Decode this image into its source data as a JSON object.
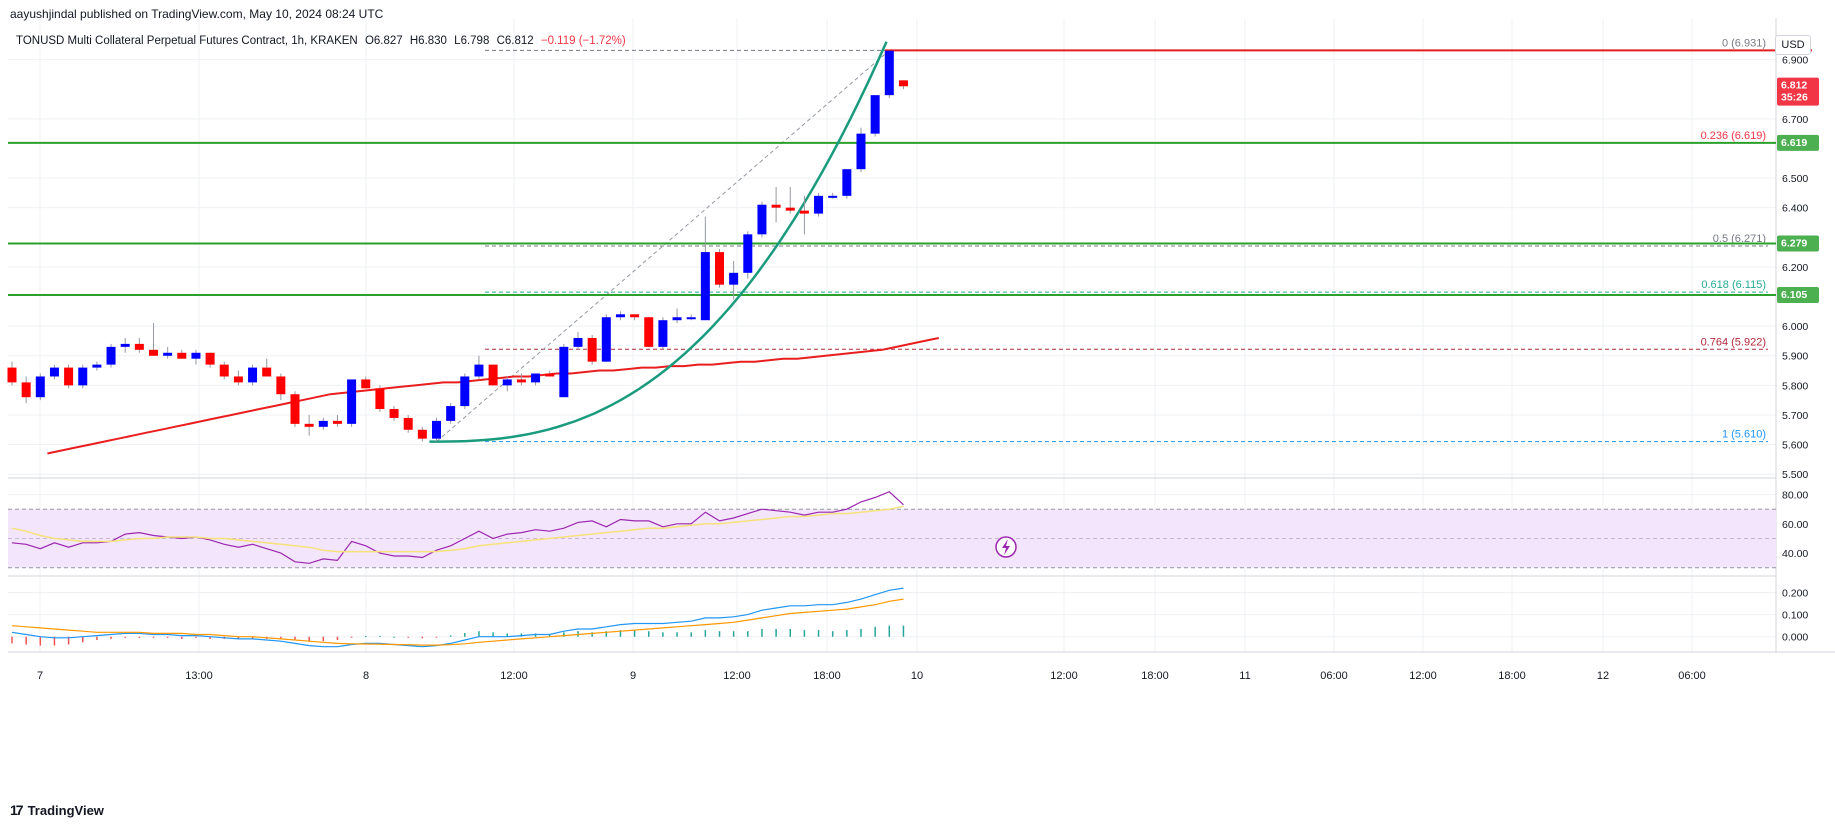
{
  "header": {
    "published": "aayushjindal published on TradingView.com, May 10, 2024 08:24 UTC",
    "symbol": "TONUSD Multi Collateral Perpetual Futures Contract, 1h, KRAKEN",
    "open": "O6.827",
    "high": "H6.830",
    "low": "L6.798",
    "close": "C6.812",
    "change": "−0.119 (−1.72%)",
    "currency": "USD"
  },
  "footer": {
    "logo_text": "TradingView",
    "logo_mark": "17"
  },
  "price_tags": {
    "last": {
      "price": "6.812",
      "countdown": "35:26",
      "color": "#f23645"
    },
    "level1": {
      "price": "6.619",
      "color": "#4caf50"
    },
    "level2": {
      "price": "6.279",
      "color": "#4caf50"
    },
    "level3": {
      "price": "6.105",
      "color": "#4caf50"
    }
  },
  "fib_labels": [
    {
      "text": "0 (6.931)",
      "color": "#787b86"
    },
    {
      "text": "0.236 (6.619)",
      "color": "#f23645"
    },
    {
      "text": "0.5 (6.271)",
      "color": "#787b86"
    },
    {
      "text": "0.618 (6.115)",
      "color": "#22ab94"
    },
    {
      "text": "0.764 (5.922)",
      "color": "#b2283b"
    },
    {
      "text": "1 (5.610)",
      "color": "#2196f3"
    }
  ],
  "chart_data": {
    "type": "candlestick",
    "price_axis": {
      "ticks": [
        "6.900",
        "6.700",
        "6.500",
        "6.400",
        "6.200",
        "6.000",
        "5.900",
        "5.800",
        "5.700",
        "5.600",
        "5.500"
      ],
      "range": [
        5.45,
        7.0
      ]
    },
    "time_axis": {
      "labels": [
        "7",
        "13:00",
        "8",
        "12:00",
        "9",
        "12:00",
        "18:00",
        "10",
        "12:00",
        "18:00",
        "11",
        "06:00",
        "12:00",
        "18:00",
        "12",
        "06:00"
      ]
    },
    "candles": [
      [
        5.86,
        5.88,
        5.8,
        5.81
      ],
      [
        5.81,
        5.83,
        5.74,
        5.76
      ],
      [
        5.76,
        5.84,
        5.75,
        5.83
      ],
      [
        5.83,
        5.87,
        5.82,
        5.86
      ],
      [
        5.86,
        5.87,
        5.79,
        5.8
      ],
      [
        5.8,
        5.87,
        5.79,
        5.86
      ],
      [
        5.86,
        5.88,
        5.85,
        5.87
      ],
      [
        5.87,
        5.94,
        5.86,
        5.93
      ],
      [
        5.93,
        5.96,
        5.91,
        5.94
      ],
      [
        5.94,
        5.96,
        5.91,
        5.92
      ],
      [
        5.92,
        6.01,
        5.9,
        5.9
      ],
      [
        5.9,
        5.93,
        5.89,
        5.91
      ],
      [
        5.91,
        5.92,
        5.89,
        5.89
      ],
      [
        5.89,
        5.92,
        5.87,
        5.91
      ],
      [
        5.91,
        5.91,
        5.86,
        5.87
      ],
      [
        5.87,
        5.88,
        5.82,
        5.83
      ],
      [
        5.83,
        5.85,
        5.8,
        5.81
      ],
      [
        5.81,
        5.87,
        5.8,
        5.86
      ],
      [
        5.86,
        5.89,
        5.83,
        5.83
      ],
      [
        5.83,
        5.84,
        5.75,
        5.77
      ],
      [
        5.77,
        5.78,
        5.66,
        5.67
      ],
      [
        5.67,
        5.7,
        5.63,
        5.66
      ],
      [
        5.66,
        5.69,
        5.65,
        5.68
      ],
      [
        5.68,
        5.7,
        5.66,
        5.67
      ],
      [
        5.67,
        5.82,
        5.66,
        5.82
      ],
      [
        5.82,
        5.83,
        5.79,
        5.79
      ],
      [
        5.79,
        5.8,
        5.71,
        5.72
      ],
      [
        5.72,
        5.73,
        5.68,
        5.69
      ],
      [
        5.69,
        5.7,
        5.64,
        5.65
      ],
      [
        5.65,
        5.66,
        5.61,
        5.62
      ],
      [
        5.62,
        5.69,
        5.61,
        5.68
      ],
      [
        5.68,
        5.74,
        5.67,
        5.73
      ],
      [
        5.73,
        5.84,
        5.72,
        5.83
      ],
      [
        5.83,
        5.9,
        5.82,
        5.87
      ],
      [
        5.87,
        5.87,
        5.8,
        5.8
      ],
      [
        5.8,
        5.83,
        5.78,
        5.82
      ],
      [
        5.82,
        5.84,
        5.8,
        5.81
      ],
      [
        5.81,
        5.84,
        5.8,
        5.84
      ],
      [
        5.84,
        5.85,
        5.83,
        5.83
      ],
      [
        5.76,
        5.94,
        5.76,
        5.93
      ],
      [
        5.93,
        5.98,
        5.92,
        5.96
      ],
      [
        5.96,
        5.97,
        5.87,
        5.88
      ],
      [
        5.88,
        6.04,
        5.88,
        6.03
      ],
      [
        6.03,
        6.05,
        6.02,
        6.04
      ],
      [
        6.04,
        6.04,
        6.02,
        6.03
      ],
      [
        6.03,
        6.03,
        5.93,
        5.93
      ],
      [
        5.93,
        6.03,
        5.92,
        6.02
      ],
      [
        6.02,
        6.06,
        6.01,
        6.03
      ],
      [
        6.03,
        6.04,
        6.02,
        6.03
      ],
      [
        6.02,
        6.37,
        6.02,
        6.25
      ],
      [
        6.25,
        6.26,
        6.13,
        6.14
      ],
      [
        6.14,
        6.22,
        6.09,
        6.18
      ],
      [
        6.18,
        6.32,
        6.16,
        6.31
      ],
      [
        6.31,
        6.42,
        6.3,
        6.41
      ],
      [
        6.41,
        6.47,
        6.35,
        6.4
      ],
      [
        6.4,
        6.47,
        6.38,
        6.39
      ],
      [
        6.39,
        6.44,
        6.31,
        6.38
      ],
      [
        6.38,
        6.45,
        6.37,
        6.44
      ],
      [
        6.44,
        6.45,
        6.43,
        6.44
      ],
      [
        6.44,
        6.53,
        6.43,
        6.53
      ],
      [
        6.53,
        6.67,
        6.52,
        6.65
      ],
      [
        6.65,
        6.78,
        6.64,
        6.78
      ],
      [
        6.78,
        6.93,
        6.77,
        6.93
      ],
      [
        6.83,
        6.83,
        6.8,
        6.81
      ]
    ],
    "sma_red": [
      5.57,
      5.58,
      5.59,
      5.6,
      5.61,
      5.62,
      5.63,
      5.64,
      5.65,
      5.66,
      5.67,
      5.68,
      5.69,
      5.7,
      5.71,
      5.72,
      5.73,
      5.74,
      5.75,
      5.76,
      5.77,
      5.775,
      5.78,
      5.785,
      5.79,
      5.795,
      5.8,
      5.805,
      5.81,
      5.81,
      5.815,
      5.82,
      5.825,
      5.83,
      5.83,
      5.835,
      5.84,
      5.84,
      5.845,
      5.85,
      5.85,
      5.855,
      5.86,
      5.86,
      5.865,
      5.865,
      5.87,
      5.87,
      5.875,
      5.88,
      5.88,
      5.885,
      5.89,
      5.89,
      5.895,
      5.9,
      5.905,
      5.91,
      5.915,
      5.92,
      5.93,
      5.94,
      5.95,
      5.96
    ],
    "parabolic_curve": {
      "start_price": 5.61,
      "end_price": 6.96
    },
    "horizontal_levels": [
      6.931,
      6.619,
      6.279,
      6.105
    ],
    "fibonacci": {
      "high": 6.931,
      "low": 5.61,
      "levels": [
        0,
        0.236,
        0.5,
        0.618,
        0.764,
        1
      ]
    },
    "rsi": {
      "ticks": [
        "80.00",
        "60.00",
        "40.00"
      ],
      "range": [
        25,
        90
      ],
      "band": [
        70,
        30
      ],
      "values": [
        47,
        46,
        43,
        47,
        44,
        47,
        47,
        48,
        53,
        54,
        52,
        51,
        50,
        51,
        49,
        46,
        44,
        46,
        43,
        40,
        34,
        33,
        36,
        35,
        48,
        45,
        40,
        38,
        38,
        37,
        42,
        45,
        50,
        55,
        50,
        53,
        54,
        56,
        55,
        57,
        61,
        62,
        58,
        63,
        62,
        62,
        58,
        60,
        60,
        68,
        62,
        64,
        67,
        70,
        69,
        68,
        66,
        68,
        68,
        70,
        75,
        78,
        82,
        73
      ],
      "ma_values": [
        57,
        55,
        52,
        50,
        49,
        48,
        48,
        48,
        49,
        50,
        50,
        51,
        51,
        51,
        50,
        50,
        49,
        48,
        47,
        46,
        45,
        44,
        42,
        41,
        41,
        41,
        41,
        41,
        41,
        41,
        41,
        42,
        43,
        45,
        46,
        47,
        48,
        49,
        50,
        51,
        52,
        53,
        54,
        55,
        56,
        57,
        57,
        58,
        59,
        60,
        60,
        61,
        62,
        63,
        64,
        65,
        65,
        66,
        67,
        67,
        68,
        69,
        70,
        72
      ]
    },
    "macd": {
      "ticks": [
        "0.200",
        "0.100",
        "0.000"
      ],
      "range": [
        -0.06,
        0.27
      ],
      "macd": [
        0.02,
        0.01,
        0.0,
        -0.005,
        -0.005,
        0.0,
        0.005,
        0.01,
        0.015,
        0.015,
        0.01,
        0.01,
        0.005,
        0.005,
        0.0,
        -0.005,
        -0.01,
        -0.01,
        -0.015,
        -0.02,
        -0.03,
        -0.04,
        -0.045,
        -0.045,
        -0.035,
        -0.03,
        -0.03,
        -0.035,
        -0.04,
        -0.045,
        -0.04,
        -0.03,
        -0.015,
        0.0,
        0.0,
        0.0,
        0.005,
        0.01,
        0.01,
        0.025,
        0.035,
        0.035,
        0.045,
        0.055,
        0.06,
        0.06,
        0.06,
        0.065,
        0.07,
        0.085,
        0.085,
        0.09,
        0.1,
        0.12,
        0.13,
        0.14,
        0.14,
        0.145,
        0.145,
        0.155,
        0.17,
        0.19,
        0.21,
        0.22
      ],
      "signal": [
        0.05,
        0.045,
        0.04,
        0.035,
        0.03,
        0.025,
        0.02,
        0.02,
        0.02,
        0.02,
        0.015,
        0.015,
        0.015,
        0.01,
        0.01,
        0.005,
        0.0,
        0.0,
        -0.005,
        -0.01,
        -0.015,
        -0.02,
        -0.025,
        -0.03,
        -0.032,
        -0.033,
        -0.034,
        -0.035,
        -0.036,
        -0.038,
        -0.038,
        -0.036,
        -0.032,
        -0.025,
        -0.02,
        -0.015,
        -0.01,
        -0.005,
        0.0,
        0.005,
        0.01,
        0.015,
        0.02,
        0.025,
        0.03,
        0.035,
        0.04,
        0.045,
        0.05,
        0.055,
        0.06,
        0.065,
        0.075,
        0.085,
        0.095,
        0.105,
        0.11,
        0.115,
        0.12,
        0.125,
        0.135,
        0.145,
        0.16,
        0.17
      ]
    },
    "colors": {
      "up": "#0000ff",
      "down": "#ff0000",
      "sma": "#e91e1e",
      "curve": "#1a9b7e",
      "level_red": "#e31e1e",
      "level_green": "#2ca02c",
      "rsi_line": "#9c27b0",
      "rsi_ma": "#f5e27a",
      "rsi_band": "#f3e5fb",
      "macd_line": "#2196f3",
      "signal_line": "#ff9800",
      "hist": "#26a69a"
    }
  }
}
